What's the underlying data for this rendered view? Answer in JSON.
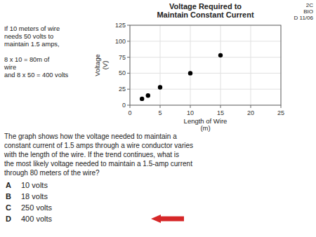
{
  "chart_data": {
    "type": "scatter",
    "title": "Voltage Required to\nMaintain Constant Current",
    "x_label": "Length of Wire\n(m)",
    "y_label": "Voltage\n(V)",
    "x": [
      2,
      3,
      5,
      10,
      15
    ],
    "values": [
      10,
      15,
      28,
      50,
      78
    ],
    "color": "black",
    "xlim": [
      0,
      25
    ],
    "ylim": [
      0,
      125
    ],
    "xticks": [
      0,
      5,
      10,
      15,
      20,
      25
    ],
    "yticks": [
      0,
      25,
      50,
      75,
      100,
      125
    ],
    "grid": true,
    "annotations": [
      "If 10 meters of wire\nneeds 50 volts to\nmaintain 1.5 amps,\n\n8 x 10 = 80m of\nwire\nand 8 x 50 = 400 volts",
      "The graph shows how the voltage  needed to maintain a",
      "constant current of 1.5 amps through a wire conductor varies",
      "with the length of the wire.  If the trend continues, what is",
      "the most likely voltage needed to maintain a 1.5-amp current",
      "through 80 meters of the wire?",
      "2C\nBIO\nD  11/06"
    ],
    "answer_choices": [
      {
        "letter": "A",
        "text": "10 volts"
      },
      {
        "letter": "B",
        "text": "18 volts"
      },
      {
        "letter": "C",
        "text": "250 volts"
      },
      {
        "letter": "D",
        "text": "400 volts"
      }
    ]
  }
}
